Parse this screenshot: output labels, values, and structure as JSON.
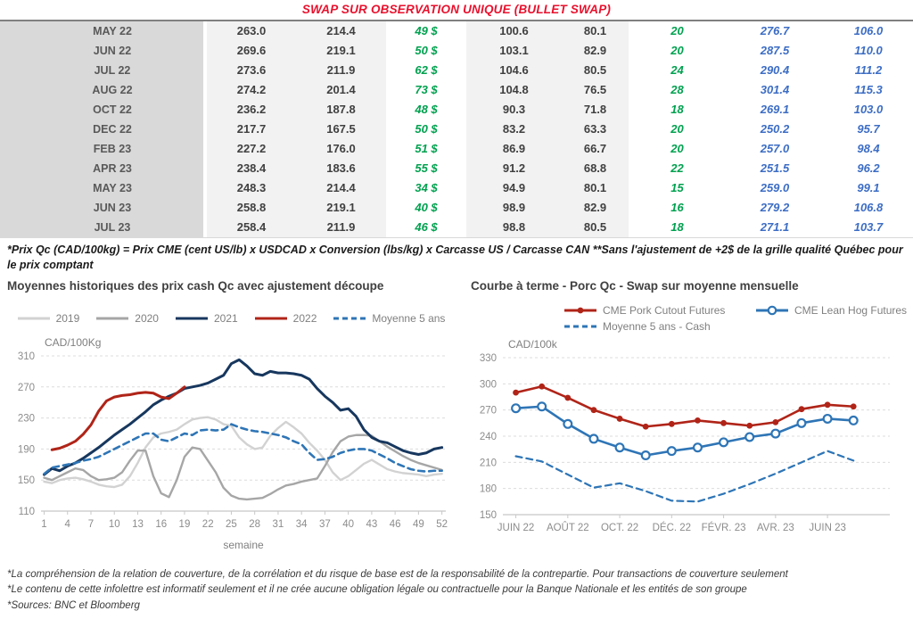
{
  "page_title": "SWAP SUR OBSERVATION UNIQUE (BULLET SWAP)",
  "colors": {
    "title_red": "#e8112d",
    "green": "#00a14f",
    "table_blue": "#3c6dc5",
    "navy": "#17375e",
    "red_line": "#b02418",
    "steel_blue": "#2e75b6",
    "gray_2020": "#a6a6a6",
    "light_gray_2019": "#d2d2d2"
  },
  "table": {
    "rows": [
      [
        "MAY 22",
        "263.0",
        "214.4",
        "49 $",
        "100.6",
        "80.1",
        "20",
        "276.7",
        "106.0"
      ],
      [
        "JUN 22",
        "269.6",
        "219.1",
        "50 $",
        "103.1",
        "82.9",
        "20",
        "287.5",
        "110.0"
      ],
      [
        "JUL 22",
        "273.6",
        "211.9",
        "62 $",
        "104.6",
        "80.5",
        "24",
        "290.4",
        "111.2"
      ],
      [
        "AUG 22",
        "274.2",
        "201.4",
        "73 $",
        "104.8",
        "76.5",
        "28",
        "301.4",
        "115.3"
      ],
      [
        "OCT 22",
        "236.2",
        "187.8",
        "48 $",
        "90.3",
        "71.8",
        "18",
        "269.1",
        "103.0"
      ],
      [
        "DEC 22",
        "217.7",
        "167.5",
        "50 $",
        "83.2",
        "63.3",
        "20",
        "250.2",
        "95.7"
      ],
      [
        "FEB 23",
        "227.2",
        "176.0",
        "51 $",
        "86.9",
        "66.7",
        "20",
        "257.0",
        "98.4"
      ],
      [
        "APR 23",
        "238.4",
        "183.6",
        "55 $",
        "91.2",
        "68.8",
        "22",
        "251.5",
        "96.2"
      ],
      [
        "MAY 23",
        "248.3",
        "214.4",
        "34 $",
        "94.9",
        "80.1",
        "15",
        "259.0",
        "99.1"
      ],
      [
        "JUN 23",
        "258.8",
        "219.1",
        "40 $",
        "98.9",
        "82.9",
        "16",
        "279.2",
        "106.8"
      ],
      [
        "JUL 23",
        "258.4",
        "211.9",
        "46 $",
        "98.8",
        "80.5",
        "18",
        "271.1",
        "103.7"
      ]
    ]
  },
  "footnote": "*Prix Qc (CAD/100kg) = Prix CME (cent US/lb) x USDCAD x Conversion (lbs/kg) x Carcasse US / Carcasse CAN **Sans l'ajustement de +2$ de la grille qualité Québec pour le prix comptant",
  "chart_data": [
    {
      "type": "line",
      "title": "Moyennes historiques des prix cash Qc avec ajustement découpe",
      "ylabel": "CAD/100Kg",
      "xlabel": "semaine",
      "ylim": [
        110,
        310
      ],
      "yticks": [
        110,
        150,
        190,
        230,
        270,
        310
      ],
      "x0": 1,
      "xmin": 0.6,
      "xmax": 52.5,
      "grid": true,
      "legend_position": "top",
      "xticks": [
        {
          "pos": 1,
          "label": "1"
        },
        {
          "pos": 4,
          "label": "4"
        },
        {
          "pos": 7,
          "label": "7"
        },
        {
          "pos": 10,
          "label": "10"
        },
        {
          "pos": 13,
          "label": "13"
        },
        {
          "pos": 16,
          "label": "16"
        },
        {
          "pos": 19,
          "label": "19"
        },
        {
          "pos": 22,
          "label": "22"
        },
        {
          "pos": 25,
          "label": "25"
        },
        {
          "pos": 28,
          "label": "28"
        },
        {
          "pos": 31,
          "label": "31"
        },
        {
          "pos": 34,
          "label": "34"
        },
        {
          "pos": 37,
          "label": "37"
        },
        {
          "pos": 40,
          "label": "40"
        },
        {
          "pos": 43,
          "label": "43"
        },
        {
          "pos": 46,
          "label": "46"
        },
        {
          "pos": 49,
          "label": "49"
        },
        {
          "pos": 52,
          "label": "52"
        }
      ],
      "series": [
        {
          "name": "2019",
          "color": "#d2d2d2",
          "width": 2.4,
          "dash": false,
          "values": [
            148,
            146,
            150,
            152,
            153,
            151,
            148,
            144,
            142,
            141,
            144,
            155,
            172,
            192,
            205,
            210,
            212,
            215,
            222,
            228,
            230,
            231,
            228,
            222,
            220,
            205,
            196,
            190,
            192,
            207,
            217,
            225,
            218,
            210,
            198,
            188,
            176,
            160,
            150,
            155,
            163,
            171,
            176,
            170,
            164,
            161,
            159,
            158,
            157,
            155,
            157,
            158
          ]
        },
        {
          "name": "2020",
          "color": "#a6a6a6",
          "width": 2.4,
          "dash": false,
          "values": [
            153,
            150,
            155,
            160,
            165,
            163,
            155,
            150,
            151,
            153,
            160,
            175,
            188,
            188,
            155,
            133,
            128,
            150,
            180,
            192,
            190,
            175,
            160,
            140,
            130,
            126,
            125,
            126,
            127,
            132,
            138,
            143,
            145,
            148,
            150,
            152,
            168,
            186,
            200,
            206,
            208,
            208,
            207,
            200,
            193,
            187,
            181,
            176,
            172,
            169,
            166,
            163
          ]
        },
        {
          "name": "2021",
          "color": "#17375e",
          "width": 3,
          "dash": false,
          "values": [
            157,
            165,
            162,
            168,
            172,
            178,
            185,
            192,
            200,
            208,
            215,
            222,
            230,
            238,
            247,
            253,
            258,
            262,
            268,
            270,
            272,
            275,
            280,
            285,
            300,
            305,
            297,
            287,
            285,
            290,
            288,
            288,
            287,
            285,
            280,
            268,
            258,
            250,
            240,
            242,
            232,
            215,
            205,
            200,
            198,
            193,
            188,
            185,
            183,
            185,
            190,
            192
          ]
        },
        {
          "name": "2022",
          "color": "#b02418",
          "width": 3,
          "dash": false,
          "values": [
            null,
            189,
            191,
            195,
            200,
            209,
            221,
            239,
            252,
            257,
            259,
            260,
            262,
            263,
            262,
            257,
            255,
            262,
            270
          ]
        },
        {
          "name": "Moyenne 5 ans",
          "color": "#2e75b6",
          "width": 2.6,
          "dash": true,
          "values": [
            158,
            166,
            168,
            170,
            172,
            175,
            177,
            180,
            185,
            190,
            195,
            200,
            205,
            210,
            210,
            202,
            200,
            205,
            210,
            208,
            214,
            215,
            214,
            215,
            222,
            218,
            215,
            213,
            212,
            210,
            208,
            205,
            200,
            196,
            185,
            176,
            177,
            180,
            185,
            188,
            190,
            190,
            188,
            183,
            178,
            172,
            168,
            164,
            162,
            161,
            162,
            162
          ]
        }
      ]
    },
    {
      "type": "line",
      "title": "Courbe à terme - Porc Qc - Swap sur moyenne mensuelle",
      "ylabel": "CAD/100k",
      "xlabel": "",
      "ylim": [
        150,
        330
      ],
      "yticks": [
        150,
        180,
        210,
        240,
        270,
        300,
        330
      ],
      "x0": 0,
      "xmin": -0.5,
      "xmax": 14.4,
      "grid": true,
      "legend_position": "top",
      "xticks": [
        {
          "pos": 0,
          "label": "JUIN 22"
        },
        {
          "pos": 2,
          "label": "AOÛT 22"
        },
        {
          "pos": 4,
          "label": "OCT. 22"
        },
        {
          "pos": 6,
          "label": "DÉC. 22"
        },
        {
          "pos": 8,
          "label": "FÉVR. 23"
        },
        {
          "pos": 10,
          "label": "AVR. 23"
        },
        {
          "pos": 12,
          "label": "JUIN 23"
        }
      ],
      "series": [
        {
          "name": "CME Pork Cutout Futures",
          "color": "#b02418",
          "width": 2.6,
          "dash": false,
          "marker": "dot",
          "values": [
            290,
            297,
            284,
            270,
            260,
            251,
            254,
            258,
            255,
            252,
            256,
            271,
            276,
            274
          ]
        },
        {
          "name": "CME Lean Hog Futures",
          "color": "#2e75b6",
          "width": 2.6,
          "dash": false,
          "marker": "circle",
          "values": [
            272,
            274,
            254,
            237,
            227,
            218,
            223,
            227,
            233,
            239,
            243,
            255,
            260,
            258
          ]
        },
        {
          "name": "Moyenne 5 ans - Cash",
          "color": "#2e75b6",
          "width": 2.2,
          "dash": true,
          "values": [
            217,
            211,
            196,
            181,
            186,
            177,
            166,
            165,
            174,
            185,
            197,
            210,
            223,
            212
          ]
        }
      ]
    }
  ],
  "footer": {
    "lines": [
      "*La compréhension de la relation de couverture, de la corrélation et du risque de base est de la responsabilité de la contrepartie. Pour transactions de couverture seulement",
      "*Le contenu de cette infolettre est informatif seulement et il ne crée aucune obligation légale ou contractuelle pour la Banque Nationale et les entités de son groupe",
      "*Sources: BNC et Bloomberg"
    ]
  }
}
